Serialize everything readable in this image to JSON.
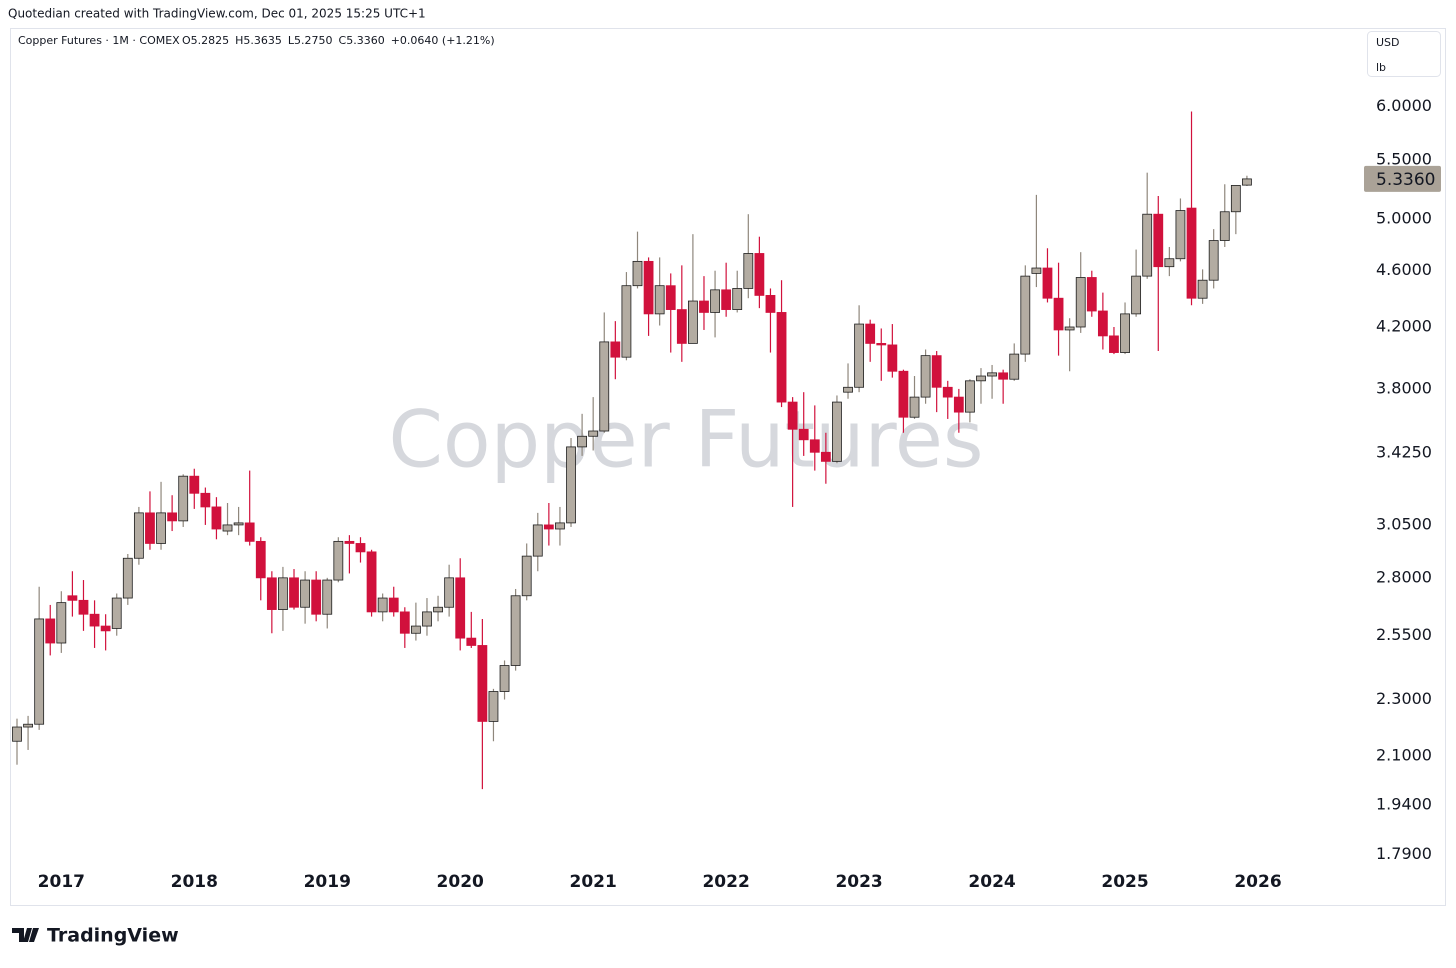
{
  "header": "Quotedian created with TradingView.com, Dec 01, 2025 15:25 UTC+1",
  "brand": "TradingView",
  "chart_data": {
    "type": "candlestick",
    "symbol": "Copper Futures · 1M · COMEX",
    "info": [
      "O5.2825",
      "H5.3635",
      "L5.2750",
      "C5.3360",
      "+0.0640 (+1.21%)"
    ],
    "watermark": "Copper Futures",
    "currency": "USD",
    "unit": "lb",
    "last_price_label": "5.3360",
    "log_scale": true,
    "grid": false,
    "up_color": "#b3aca2",
    "down_color": "#d1113c",
    "ylim": [
      1.65,
      6.81
    ],
    "yticks": [
      {
        "value": 6,
        "label": "6.0000"
      },
      {
        "value": 5.5,
        "label": "5.5000"
      },
      {
        "value": 5,
        "label": "5.0000"
      },
      {
        "value": 4.6,
        "label": "4.6000"
      },
      {
        "value": 4.2,
        "label": "4.2000"
      },
      {
        "value": 3.8,
        "label": "3.8000"
      },
      {
        "value": 3.425,
        "label": "3.4250"
      },
      {
        "value": 3.05,
        "label": "3.0500"
      },
      {
        "value": 2.8,
        "label": "2.8000"
      },
      {
        "value": 2.55,
        "label": "2.5500"
      },
      {
        "value": 2.3,
        "label": "2.3000"
      },
      {
        "value": 2.1,
        "label": "2.1000"
      },
      {
        "value": 1.94,
        "label": "1.9400"
      },
      {
        "value": 1.79,
        "label": "1.7900"
      }
    ],
    "categories": [
      null,
      null,
      null,
      null,
      "2017",
      null,
      null,
      null,
      null,
      null,
      null,
      null,
      null,
      null,
      null,
      null,
      "2018",
      null,
      null,
      null,
      null,
      null,
      null,
      null,
      null,
      null,
      null,
      null,
      "2019",
      null,
      null,
      null,
      null,
      null,
      null,
      null,
      null,
      null,
      null,
      null,
      "2020",
      null,
      null,
      null,
      null,
      null,
      null,
      null,
      null,
      null,
      null,
      null,
      "2021",
      null,
      null,
      null,
      null,
      null,
      null,
      null,
      null,
      null,
      null,
      null,
      "2022",
      null,
      null,
      null,
      null,
      null,
      null,
      null,
      null,
      null,
      null,
      null,
      "2023",
      null,
      null,
      null,
      null,
      null,
      null,
      null,
      null,
      null,
      null,
      null,
      "2024",
      null,
      null,
      null,
      null,
      null,
      null,
      null,
      null,
      null,
      null,
      null,
      "2025",
      null,
      null,
      null,
      null,
      null,
      null,
      null,
      null,
      null,
      null,
      null,
      "2026"
    ],
    "open": [
      2.15,
      2.2,
      2.21,
      2.62,
      2.52,
      2.72,
      2.7,
      2.64,
      2.59,
      2.58,
      2.71,
      2.89,
      3.11,
      2.96,
      3.11,
      3.07,
      3.3,
      3.21,
      3.14,
      3.02,
      3.05,
      3.06,
      2.97,
      2.8,
      2.66,
      2.8,
      2.67,
      2.79,
      2.64,
      2.79,
      2.97,
      2.96,
      2.92,
      2.65,
      2.71,
      2.65,
      2.56,
      2.59,
      2.65,
      2.67,
      2.8,
      2.54,
      2.51,
      2.22,
      2.33,
      2.43,
      2.72,
      2.9,
      3.05,
      3.03,
      3.06,
      3.46,
      3.52,
      3.55,
      4.1,
      4.0,
      4.49,
      4.67,
      4.29,
      4.49,
      4.32,
      4.09,
      4.38,
      4.3,
      4.46,
      4.32,
      4.47,
      4.73,
      4.42,
      4.3,
      3.72,
      3.56,
      3.5,
      3.43,
      3.38,
      3.78,
      3.81,
      4.22,
      4.09,
      4.08,
      3.91,
      3.63,
      3.75,
      4.01,
      3.81,
      3.75,
      3.66,
      3.85,
      3.88,
      3.9,
      3.86,
      4.02,
      4.58,
      4.62,
      4.4,
      4.18,
      4.2,
      4.55,
      4.31,
      4.14,
      4.03,
      4.29,
      4.56,
      5.04,
      4.63,
      4.69,
      5.09,
      4.4,
      4.53,
      4.83,
      5.06,
      5.2825,
      null
    ],
    "high": [
      2.23,
      2.24,
      2.76,
      2.68,
      2.74,
      2.83,
      2.79,
      2.7,
      2.64,
      2.73,
      2.91,
      3.14,
      3.22,
      3.27,
      3.2,
      3.31,
      3.34,
      3.24,
      3.19,
      3.16,
      3.14,
      3.33,
      2.99,
      2.83,
      2.85,
      2.84,
      2.83,
      2.83,
      2.8,
      2.99,
      3.0,
      2.99,
      2.93,
      2.73,
      2.76,
      2.67,
      2.69,
      2.71,
      2.72,
      2.86,
      2.89,
      2.65,
      2.62,
      2.34,
      2.45,
      2.75,
      2.96,
      3.11,
      3.16,
      3.14,
      3.51,
      3.65,
      3.75,
      4.3,
      4.24,
      4.59,
      4.9,
      4.7,
      4.7,
      4.58,
      4.64,
      4.88,
      4.56,
      4.6,
      4.66,
      4.6,
      5.04,
      4.86,
      4.47,
      4.53,
      3.75,
      3.78,
      3.7,
      3.54,
      3.76,
      3.96,
      4.35,
      4.25,
      4.19,
      4.22,
      3.92,
      3.88,
      4.05,
      4.04,
      3.85,
      3.8,
      3.86,
      3.93,
      3.95,
      3.92,
      4.09,
      4.64,
      5.2,
      4.77,
      4.66,
      4.26,
      4.74,
      4.6,
      4.44,
      4.2,
      4.37,
      4.76,
      5.39,
      5.19,
      4.78,
      5.17,
      5.95,
      4.61,
      4.92,
      5.29,
      5.28,
      5.3635,
      null
    ],
    "low": [
      2.07,
      2.12,
      2.19,
      2.47,
      2.48,
      2.63,
      2.57,
      2.5,
      2.49,
      2.55,
      2.68,
      2.86,
      2.93,
      2.93,
      3.02,
      3.04,
      3.13,
      3.05,
      2.98,
      3.0,
      3.0,
      2.95,
      2.7,
      2.56,
      2.57,
      2.66,
      2.6,
      2.61,
      2.58,
      2.78,
      2.82,
      2.87,
      2.63,
      2.61,
      2.63,
      2.5,
      2.53,
      2.55,
      2.61,
      2.63,
      2.49,
      2.5,
      1.99,
      2.15,
      2.3,
      2.41,
      2.7,
      2.83,
      2.95,
      2.95,
      3.04,
      3.41,
      3.44,
      3.54,
      3.86,
      3.98,
      4.47,
      4.14,
      4.21,
      4.03,
      3.97,
      4.09,
      4.18,
      4.13,
      4.27,
      4.3,
      4.4,
      4.33,
      4.03,
      3.69,
      3.14,
      3.41,
      3.33,
      3.26,
      3.37,
      3.74,
      3.78,
      3.97,
      3.85,
      3.87,
      3.54,
      3.62,
      3.71,
      3.66,
      3.62,
      3.54,
      3.6,
      3.71,
      3.74,
      3.71,
      3.85,
      3.97,
      4.48,
      4.37,
      4.01,
      3.91,
      4.16,
      4.27,
      4.05,
      4.02,
      4.02,
      4.27,
      4.54,
      4.04,
      4.56,
      4.67,
      4.35,
      4.36,
      4.47,
      4.78,
      4.88,
      5.275,
      null
    ],
    "close": [
      2.2,
      2.21,
      2.62,
      2.52,
      2.69,
      2.7,
      2.64,
      2.59,
      2.57,
      2.71,
      2.89,
      3.11,
      2.96,
      3.11,
      3.07,
      3.3,
      3.21,
      3.14,
      3.03,
      3.05,
      3.06,
      2.97,
      2.8,
      2.66,
      2.8,
      2.67,
      2.79,
      2.64,
      2.79,
      2.97,
      2.96,
      2.92,
      2.65,
      2.71,
      2.65,
      2.56,
      2.59,
      2.65,
      2.67,
      2.8,
      2.54,
      2.51,
      2.22,
      2.33,
      2.43,
      2.72,
      2.9,
      3.05,
      3.03,
      3.06,
      3.46,
      3.52,
      3.55,
      4.1,
      4.0,
      4.49,
      4.67,
      4.29,
      4.49,
      4.32,
      4.09,
      4.38,
      4.3,
      4.46,
      4.32,
      4.47,
      4.73,
      4.42,
      4.3,
      3.72,
      3.56,
      3.5,
      3.43,
      3.38,
      3.72,
      3.81,
      4.22,
      4.09,
      4.08,
      3.91,
      3.63,
      3.75,
      4.01,
      3.81,
      3.75,
      3.66,
      3.85,
      3.88,
      3.9,
      3.86,
      4.02,
      4.56,
      4.62,
      4.4,
      4.18,
      4.2,
      4.55,
      4.31,
      4.14,
      4.03,
      4.29,
      4.56,
      5.04,
      4.63,
      4.69,
      5.07,
      4.4,
      4.53,
      4.83,
      5.06,
      5.28,
      5.336,
      null
    ]
  }
}
